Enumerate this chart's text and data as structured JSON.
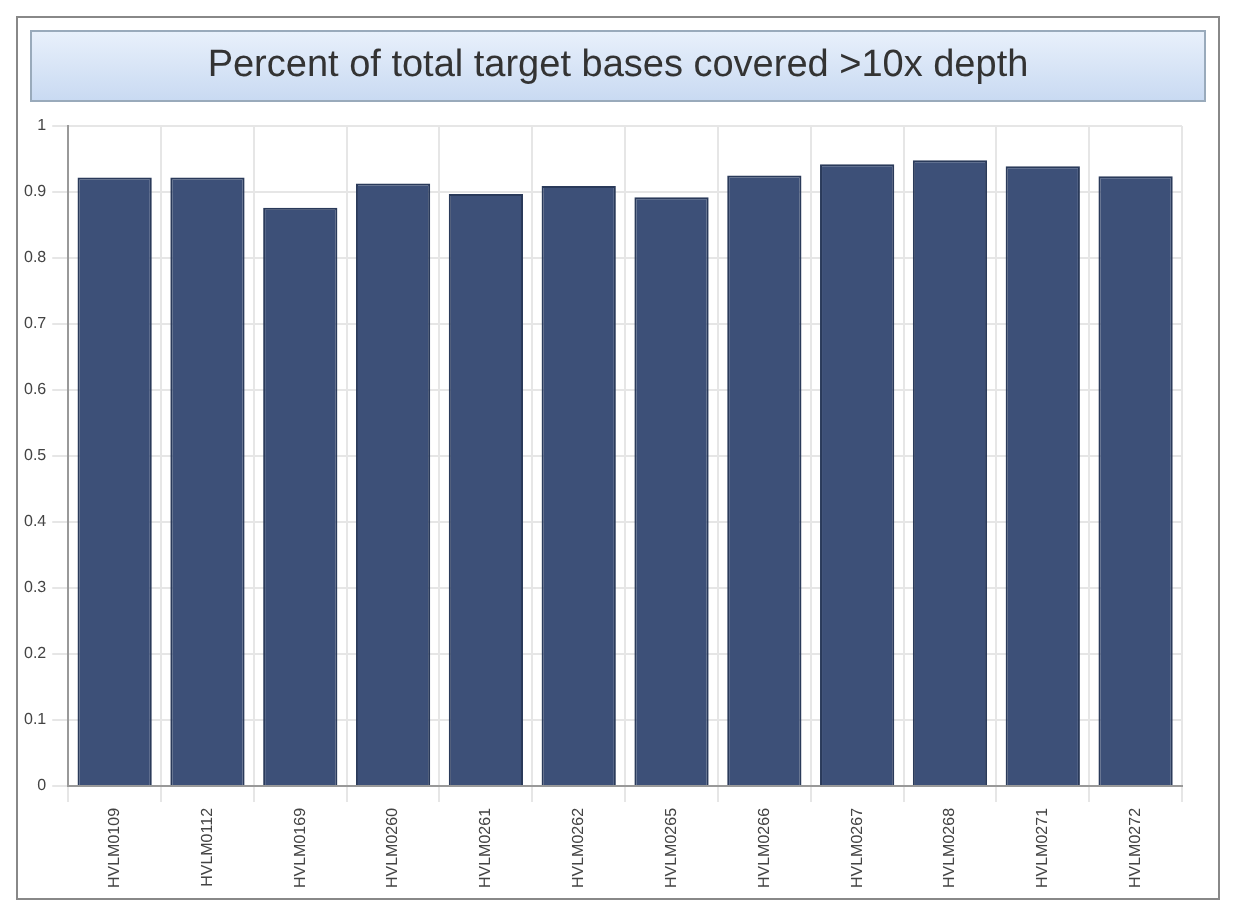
{
  "chart_data": {
    "type": "bar",
    "title": "Percent of total target bases covered >10x depth",
    "categories": [
      "HVLM0109",
      "HVLM0112",
      "HVLM0169",
      "HVLM0260",
      "HVLM0261",
      "HVLM0262",
      "HVLM0265",
      "HVLM0266",
      "HVLM0267",
      "HVLM0268",
      "HVLM0271",
      "HVLM0272"
    ],
    "values": [
      0.922,
      0.922,
      0.876,
      0.913,
      0.897,
      0.909,
      0.892,
      0.925,
      0.942,
      0.948,
      0.939,
      0.924
    ],
    "color": "#3d5078",
    "ylim": [
      0,
      1
    ],
    "yticks": [
      0,
      0.1,
      0.2,
      0.3,
      0.4,
      0.5,
      0.6,
      0.7,
      0.8,
      0.9,
      1
    ],
    "grid": true
  }
}
